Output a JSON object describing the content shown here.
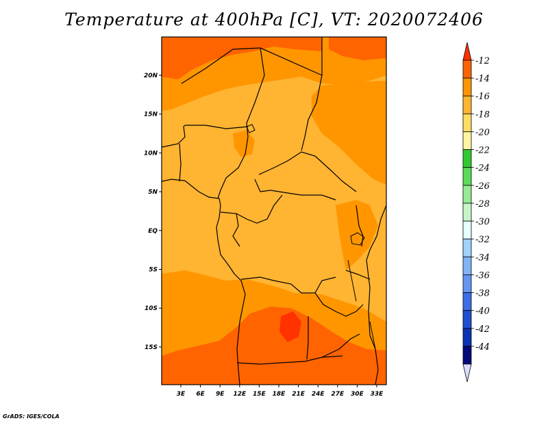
{
  "title": "Temperature at 400hPa [C], VT: 2020072406",
  "credit": "GrADS: IGES/COLA",
  "map": {
    "projection": "latlon",
    "lon_range": [
      0,
      34
    ],
    "lat_range": [
      -20,
      25
    ],
    "field_variable": "Temperature at 400hPa",
    "field_units": "C",
    "lat_ticks": [
      "20N",
      "15N",
      "10N",
      "5N",
      "EQ",
      "5S",
      "10S",
      "15S"
    ],
    "lon_ticks": [
      "3E",
      "6E",
      "9E",
      "12E",
      "15E",
      "18E",
      "21E",
      "24E",
      "27E",
      "30E",
      "33E"
    ]
  },
  "colorbar": {
    "labels": [
      "-12",
      "-14",
      "-16",
      "-18",
      "-20",
      "-22",
      "-24",
      "-26",
      "-28",
      "-30",
      "-32",
      "-34",
      "-36",
      "-38",
      "-40",
      "-42",
      "-44"
    ],
    "colors": [
      "#ff3200",
      "#ff6400",
      "#ff9600",
      "#ffb432",
      "#ffdc64",
      "#fff5a0",
      "#32c832",
      "#5adc5a",
      "#96eb96",
      "#c8f5c8",
      "#e6ffff",
      "#a0d2fa",
      "#82b4f5",
      "#6496f0",
      "#3c6ee6",
      "#1e50d2",
      "#0a32b4",
      "#000a78",
      "#dcdcff"
    ]
  }
}
